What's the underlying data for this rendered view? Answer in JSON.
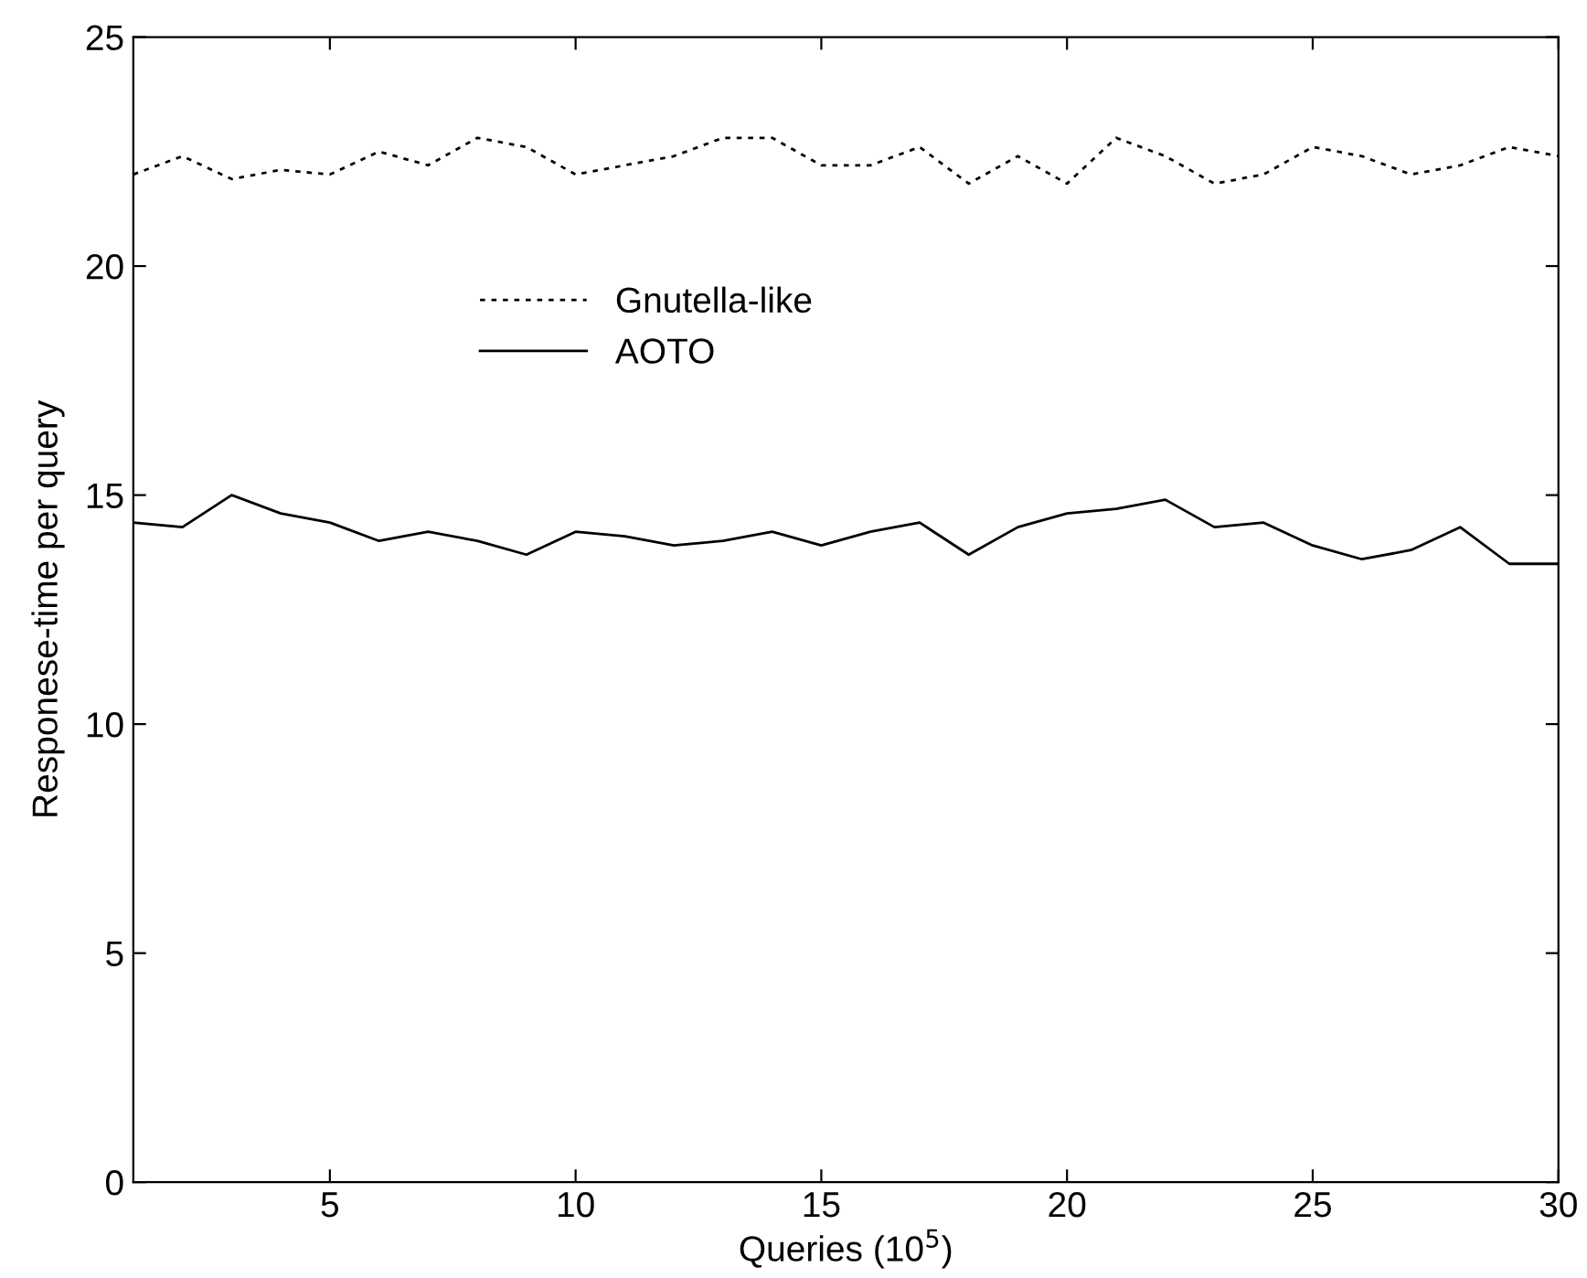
{
  "chart_data": {
    "type": "line",
    "xlabel": "Queries (10$^{5}$)",
    "ylabel": "Responese-time per query",
    "x": [
      1,
      2,
      3,
      4,
      5,
      6,
      7,
      8,
      9,
      10,
      11,
      12,
      13,
      14,
      15,
      16,
      17,
      18,
      19,
      20,
      21,
      22,
      23,
      24,
      25,
      26,
      27,
      28,
      29,
      30
    ],
    "series": [
      {
        "name": "Gnutella-like",
        "color": "#000000",
        "line_style": "dotted",
        "values": [
          22.0,
          22.4,
          21.9,
          22.1,
          22.0,
          22.5,
          22.2,
          22.8,
          22.6,
          22.0,
          22.2,
          22.4,
          22.8,
          22.8,
          22.2,
          22.2,
          22.6,
          21.8,
          22.4,
          21.8,
          22.8,
          22.4,
          21.8,
          22.0,
          22.6,
          22.4,
          22.0,
          22.2,
          22.6,
          22.4
        ]
      },
      {
        "name": "AOTO",
        "color": "#000000",
        "line_style": "solid",
        "values": [
          14.4,
          14.3,
          15.0,
          14.6,
          14.4,
          14.0,
          14.2,
          14.0,
          13.7,
          14.2,
          14.1,
          13.9,
          14.0,
          14.2,
          13.9,
          14.2,
          14.4,
          13.7,
          14.3,
          14.6,
          14.7,
          14.9,
          14.3,
          14.4,
          13.9,
          13.6,
          13.8,
          14.3,
          13.5,
          13.5
        ]
      }
    ],
    "xlim": [
      1,
      30
    ],
    "xticks": [
      5,
      10,
      15,
      20,
      25,
      30
    ],
    "ylim": [
      0,
      25
    ],
    "yticks": [
      0,
      5,
      10,
      15,
      20,
      25
    ],
    "grid": false,
    "legend": "top center",
    "marker": "none"
  }
}
